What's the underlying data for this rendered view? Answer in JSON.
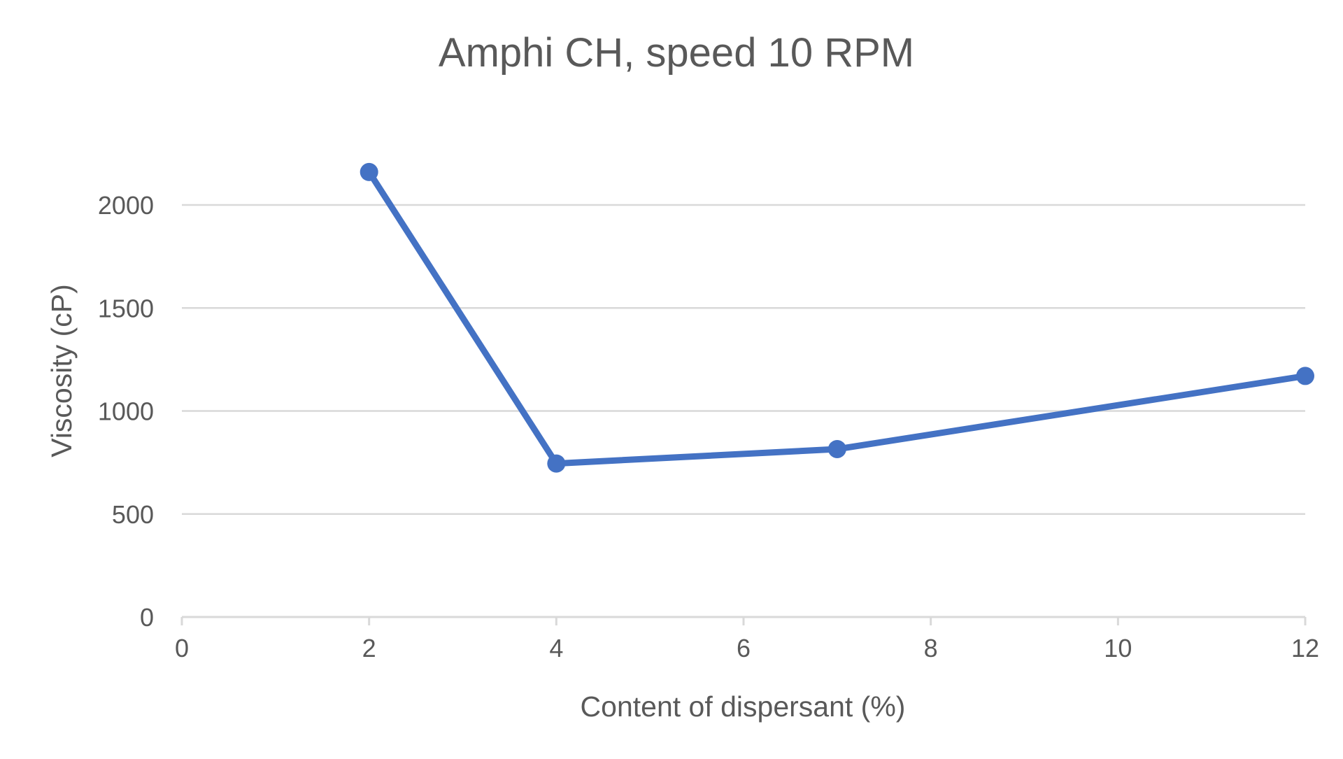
{
  "chart_data": {
    "type": "line",
    "title": "Amphi CH, speed 10 RPM",
    "xlabel": "Content of dispersant (%)",
    "ylabel": "Viscosity (cP)",
    "xlim": [
      0,
      12
    ],
    "ylim": [
      0,
      2000
    ],
    "x_ticks": [
      0,
      2,
      4,
      6,
      8,
      10,
      12
    ],
    "y_ticks": [
      0,
      500,
      1000,
      1500,
      2000
    ],
    "grid": true,
    "legend": "none",
    "series": [
      {
        "x": [
          2,
          4,
          7,
          12
        ],
        "values": [
          2160,
          745,
          815,
          1170
        ],
        "color": "#4472c4"
      }
    ]
  }
}
